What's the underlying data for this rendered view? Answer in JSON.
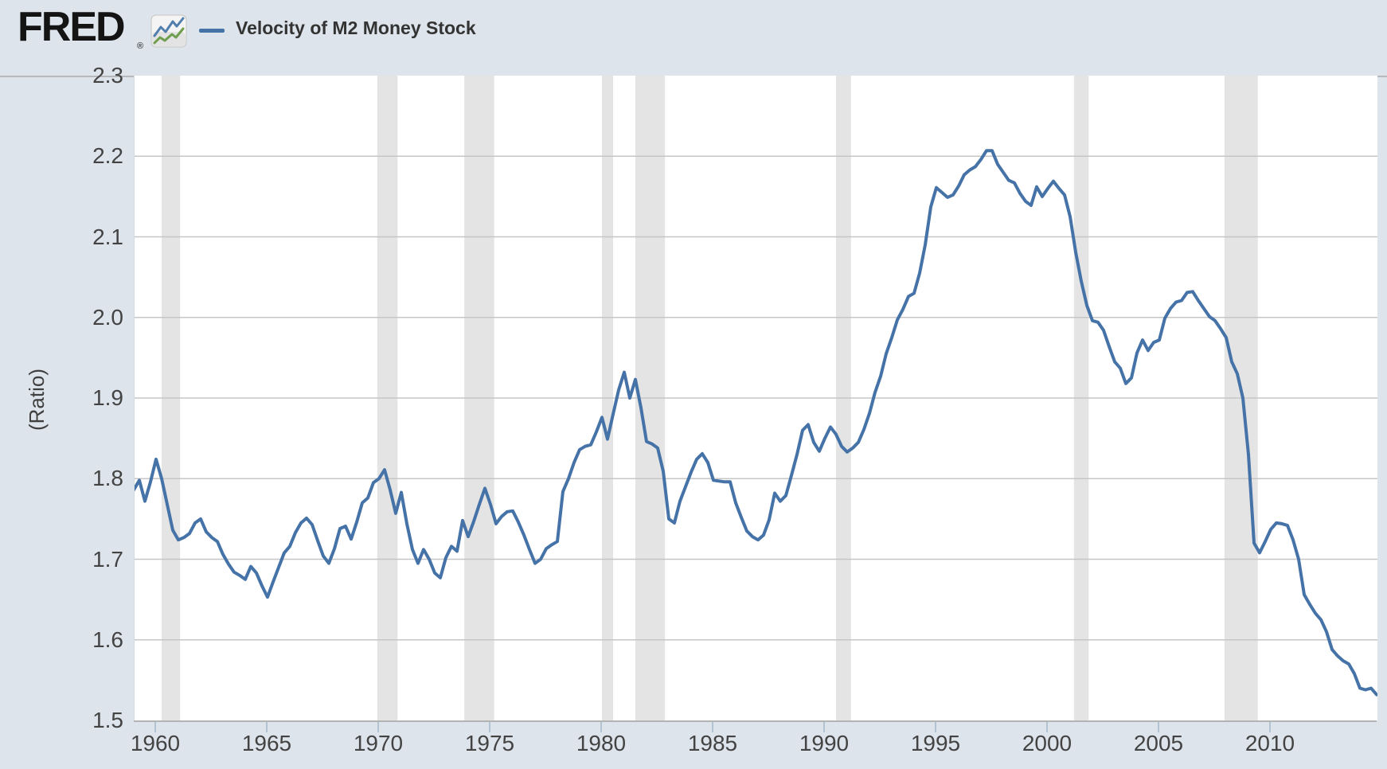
{
  "header": {
    "logo_text": "FRED",
    "registered_mark": "®",
    "legend_label": "Velocity of M2 Money Stock"
  },
  "colors": {
    "page_bg": "#dde4eb",
    "plot_bg": "#ffffff",
    "line": "#4572a7",
    "recession_band": "#e4e4e4",
    "gridline": "#c6c6c6",
    "axis_line": "#b3b3b3",
    "tick": "#b3c3d2",
    "label_text": "#434343",
    "icon_blue": "#527ead",
    "icon_green": "#6f9e4f"
  },
  "chart_data": {
    "type": "line",
    "title": "Velocity of M2 Money Stock",
    "series_name": "Velocity of M2 Money Stock",
    "ylabel": "(Ratio)",
    "xlabel": "",
    "ylim": [
      1.5,
      2.3
    ],
    "xlim": [
      1959.0,
      2015.0
    ],
    "grid": "horizontal",
    "legend_position": "top-header",
    "frequency": "quarterly",
    "x_start_year": 1959,
    "points_per_year": 4,
    "y_tick_labels": [
      "2.3",
      "2.2",
      "2.1",
      "2.0",
      "1.9",
      "1.8",
      "1.7",
      "1.6",
      "1.5"
    ],
    "x_tick_labels": [
      "1960",
      "1965",
      "1970",
      "1975",
      "1980",
      "1985",
      "1990",
      "1995",
      "2000",
      "2005",
      "2010"
    ],
    "recessions": [
      [
        1960.25,
        1961.08
      ],
      [
        1969.92,
        1970.83
      ],
      [
        1973.83,
        1975.17
      ],
      [
        1980.0,
        1980.5
      ],
      [
        1981.5,
        1982.83
      ],
      [
        1990.5,
        1991.17
      ],
      [
        2001.17,
        2001.83
      ],
      [
        2007.92,
        2009.42
      ]
    ],
    "values": [
      1.786,
      1.798,
      1.772,
      1.796,
      1.824,
      1.8,
      1.768,
      1.736,
      1.724,
      1.727,
      1.732,
      1.745,
      1.75,
      1.734,
      1.727,
      1.722,
      1.706,
      1.694,
      1.684,
      1.68,
      1.675,
      1.691,
      1.683,
      1.667,
      1.653,
      1.672,
      1.69,
      1.708,
      1.716,
      1.733,
      1.745,
      1.751,
      1.743,
      1.723,
      1.704,
      1.695,
      1.713,
      1.738,
      1.741,
      1.725,
      1.746,
      1.77,
      1.776,
      1.795,
      1.8,
      1.811,
      1.786,
      1.757,
      1.783,
      1.744,
      1.712,
      1.695,
      1.712,
      1.7,
      1.683,
      1.677,
      1.702,
      1.716,
      1.71,
      1.748,
      1.728,
      1.747,
      1.768,
      1.788,
      1.768,
      1.744,
      1.753,
      1.759,
      1.76,
      1.746,
      1.73,
      1.712,
      1.695,
      1.7,
      1.713,
      1.718,
      1.722,
      1.784,
      1.8,
      1.82,
      1.836,
      1.84,
      1.842,
      1.858,
      1.876,
      1.849,
      1.88,
      1.91,
      1.932,
      1.9,
      1.923,
      1.888,
      1.846,
      1.843,
      1.838,
      1.809,
      1.75,
      1.745,
      1.772,
      1.79,
      1.808,
      1.824,
      1.831,
      1.82,
      1.798,
      1.797,
      1.796,
      1.796,
      1.77,
      1.752,
      1.735,
      1.728,
      1.724,
      1.73,
      1.749,
      1.782,
      1.772,
      1.779,
      1.804,
      1.83,
      1.86,
      1.867,
      1.845,
      1.834,
      1.85,
      1.864,
      1.855,
      1.84,
      1.833,
      1.838,
      1.845,
      1.861,
      1.881,
      1.907,
      1.927,
      1.955,
      1.975,
      1.997,
      2.01,
      2.026,
      2.03,
      2.055,
      2.09,
      2.137,
      2.161,
      2.155,
      2.149,
      2.152,
      2.163,
      2.177,
      2.183,
      2.187,
      2.196,
      2.207,
      2.207,
      2.19,
      2.18,
      2.17,
      2.167,
      2.154,
      2.144,
      2.139,
      2.162,
      2.15,
      2.16,
      2.169,
      2.16,
      2.152,
      2.125,
      2.081,
      2.045,
      2.015,
      1.996,
      1.994,
      1.984,
      1.964,
      1.945,
      1.937,
      1.918,
      1.925,
      1.956,
      1.972,
      1.959,
      1.969,
      1.972,
      1.999,
      2.011,
      2.019,
      2.021,
      2.031,
      2.032,
      2.021,
      2.011,
      2.001,
      1.996,
      1.986,
      1.975,
      1.945,
      1.93,
      1.9,
      1.83,
      1.72,
      1.708,
      1.722,
      1.737,
      1.745,
      1.744,
      1.742,
      1.724,
      1.7,
      1.656,
      1.644,
      1.633,
      1.625,
      1.61,
      1.588,
      1.58,
      1.574,
      1.57,
      1.558,
      1.54,
      1.538,
      1.54,
      1.532
    ]
  }
}
